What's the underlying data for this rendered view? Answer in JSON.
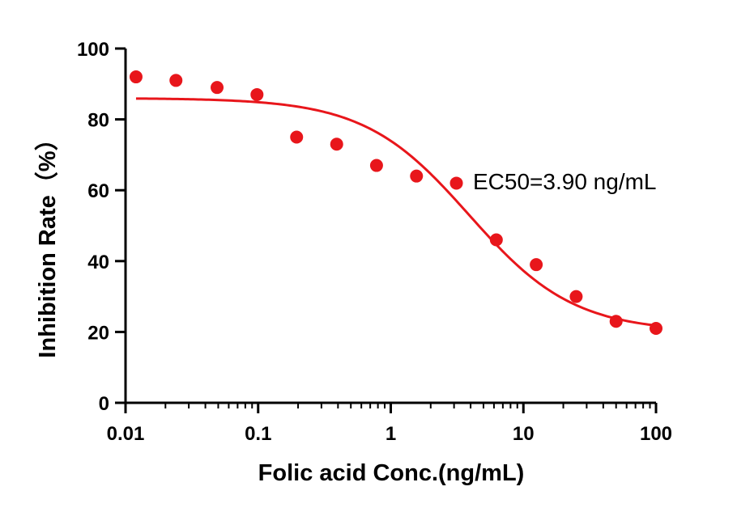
{
  "chart_data": {
    "type": "scatter",
    "xscale": "log",
    "xlabel": "Folic acid  Conc.(ng/mL)",
    "ylabel": "Inhibition Rate（%）",
    "xlim": [
      0.01,
      100
    ],
    "ylim": [
      0,
      100
    ],
    "x_ticks": [
      0.01,
      0.1,
      1,
      10,
      100
    ],
    "x_tick_labels": [
      "0.01",
      "0.1",
      "1",
      "10",
      "100"
    ],
    "y_ticks": [
      0,
      20,
      40,
      60,
      80,
      100
    ],
    "y_tick_labels": [
      "0",
      "20",
      "40",
      "60",
      "80",
      "100"
    ],
    "annotation": "EC50=3.90 ng/mL",
    "color": "#e8161b",
    "series": [
      {
        "name": "Inhibition Rate",
        "x": [
          0.012,
          0.024,
          0.049,
          0.098,
          0.195,
          0.391,
          0.781,
          1.563,
          3.125,
          6.25,
          12.5,
          25,
          50,
          100
        ],
        "y": [
          92,
          91,
          89,
          87,
          75,
          73,
          67,
          64,
          62,
          46,
          39,
          30,
          23,
          21
        ]
      }
    ],
    "fit": {
      "model": "4PL",
      "bottom": 20,
      "top": 86,
      "ec50": 3.9,
      "hill_slope": 1.1
    }
  }
}
